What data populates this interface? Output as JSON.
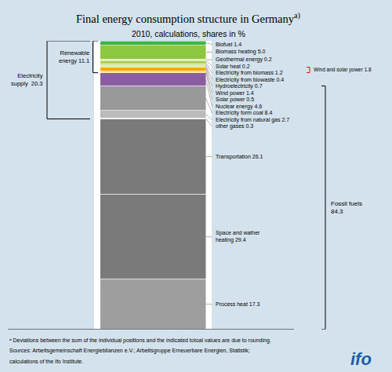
{
  "chart_data": {
    "type": "bar",
    "stacked": true,
    "title": "Final energy consumption structure in Germany",
    "title_note": "a)",
    "subtitle": "2010, calculations, shares in %",
    "background_color": "#d4e2ed",
    "plot_background": "#ffffff",
    "tick_labels": false,
    "ylim": [
      99.8,
      0
    ],
    "series": [
      {
        "name": "Biofuel 1.4",
        "color": "#3cb54a",
        "values": [
          1.4
        ]
      },
      {
        "name": "Biomass heating 5.0",
        "color": "#8dc63f",
        "values": [
          5.0
        ]
      },
      {
        "name": "Geothermal energy 0.2",
        "color": "#b5d334",
        "values": [
          0.2
        ]
      },
      {
        "name": "Solar heat 0.2",
        "color": "#d7e895",
        "values": [
          0.2
        ]
      },
      {
        "name": "Electricity from biomass 1.2",
        "color": "#aacf53",
        "values": [
          1.2
        ]
      },
      {
        "name": "Electricity from biowaste 0.4",
        "color": "#c8df8e",
        "values": [
          0.4
        ]
      },
      {
        "name": "Hydroelectricity 0.7",
        "color": "#d4e87a",
        "values": [
          0.7
        ]
      },
      {
        "name": "Wind power 1.4",
        "color": "#f5a800",
        "values": [
          1.4
        ]
      },
      {
        "name": "Solar power 0.5",
        "color": "#ffe033",
        "values": [
          0.5
        ]
      },
      {
        "name": "Nuclear energy 4.6",
        "color": "#8b5ca0",
        "values": [
          4.6
        ]
      },
      {
        "name": "Electricity form coal 8.4",
        "color": "#999999",
        "values": [
          8.4
        ]
      },
      {
        "name": "Electricity from natural gas 2.7",
        "color": "#bbbbbb",
        "values": [
          2.7
        ]
      },
      {
        "name": "other gases 0.3",
        "color": "#dddddd",
        "values": [
          0.3
        ]
      },
      {
        "name": "Transportation 26.1",
        "color": "#7a7a7a",
        "values": [
          26.1
        ]
      },
      {
        "name": "Space and wather\nheating 29.4",
        "color": "#7a7a7a",
        "values": [
          29.4
        ]
      },
      {
        "name": "Process heat 17.3",
        "color": "#9e9e9e",
        "values": [
          17.3
        ]
      }
    ],
    "brackets": [
      {
        "text": "Renewable\nenergy 11.1",
        "from": 0,
        "to": 8,
        "color": "black"
      },
      {
        "text": "Electricity\nsupply  20.3",
        "from": 0,
        "to": 12,
        "color": "black"
      },
      {
        "text": "Wind and solar power 1.8",
        "from": 7,
        "to": 8,
        "color": "red"
      },
      {
        "text": "Fossil fuels\n84.3",
        "from": 10,
        "to": 15,
        "color": "black"
      }
    ],
    "footnotes": [
      "ᵃ Deviations between the sum of the individual positions and the indicated totoal values are due to rounding.",
      "Sources: Arbeitsgemeinschaft Energiebilanzen e.V.; Arbeitsgruppe Erneuerbare Energien, Statistik;",
      "calculations of the Ifo Institute."
    ],
    "logo": "ifo",
    "logo_color": "#1a5ea8"
  }
}
